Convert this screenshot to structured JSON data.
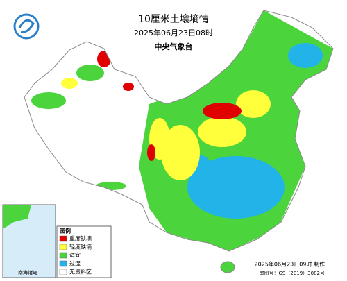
{
  "header": {
    "title": "10厘米土壤墒情",
    "datetime": "2025年06月23日08时",
    "agency": "中央气象台"
  },
  "legend": {
    "title": "图例",
    "items": [
      {
        "label": "重度缺墒",
        "color": "#e00000"
      },
      {
        "label": "轻度缺墒",
        "color": "#ffff3c"
      },
      {
        "label": "适宜",
        "color": "#4cd43c"
      },
      {
        "label": "过湿",
        "color": "#22b4e8"
      },
      {
        "label": "无资料区",
        "color": "#ffffff"
      }
    ]
  },
  "inset": {
    "label": "南海诸岛"
  },
  "footer": {
    "made": "2025年06月23日09时 制作",
    "approval": "审图号：GS（2019）3082号"
  }
}
